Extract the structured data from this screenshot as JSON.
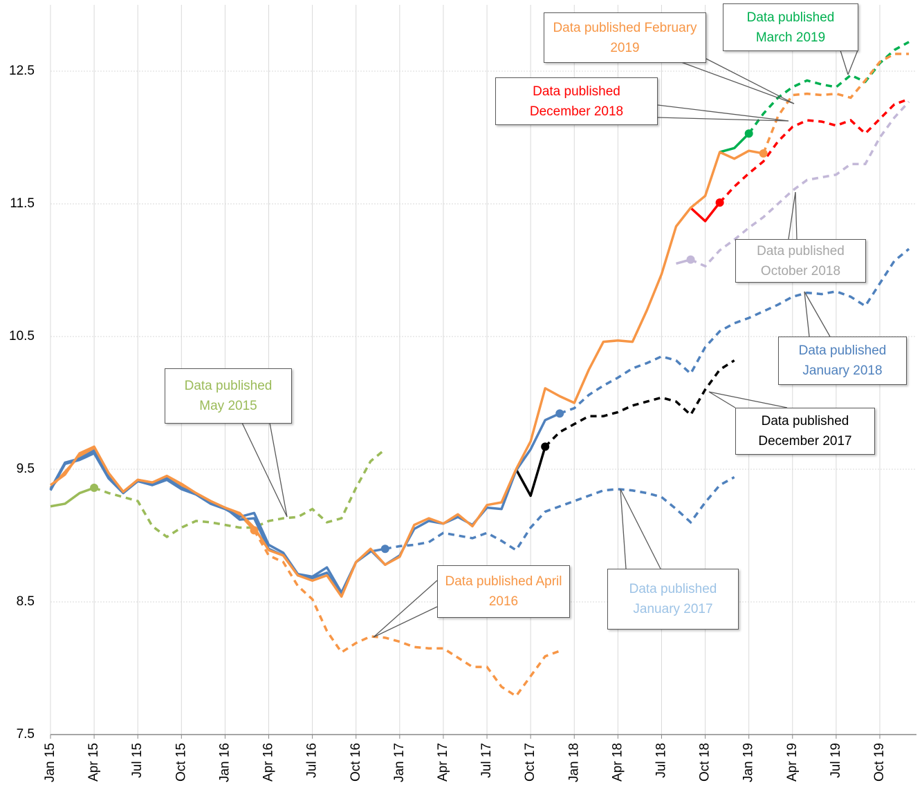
{
  "chart_data": {
    "type": "line",
    "categories": [
      "Jan 15",
      null,
      null,
      "Apr 15",
      null,
      null,
      "Jul 15",
      null,
      null,
      "Oct 15",
      null,
      null,
      "Jan 16",
      null,
      null,
      "Apr 16",
      null,
      null,
      "Jul 16",
      null,
      null,
      "Oct 16",
      null,
      null,
      "Jan 17",
      null,
      null,
      "Apr 17",
      null,
      null,
      "Jul 17",
      null,
      null,
      "Oct 17",
      null,
      null,
      "Jan 18",
      null,
      null,
      "Apr 18",
      null,
      null,
      "Jul 18",
      null,
      null,
      "Oct 18",
      null,
      null,
      "Jan 19",
      null,
      null,
      "Apr 19",
      null,
      null,
      "Jul 19",
      null,
      null,
      "Oct 19",
      null,
      null
    ],
    "ylim": [
      7.5,
      13.0
    ],
    "yticks": [
      7.5,
      8.5,
      9.5,
      10.5,
      11.5,
      12.5
    ],
    "grid": true,
    "series": [
      {
        "name": "Data published May 2015",
        "color": "#9bbb59",
        "values": [
          9.22,
          9.24,
          9.32,
          9.36,
          null,
          null,
          null,
          null,
          null,
          null,
          null,
          null,
          null,
          null,
          null,
          null,
          null,
          null,
          null,
          null,
          null,
          null,
          null,
          null,
          null,
          null,
          null,
          null,
          null,
          null,
          null,
          null,
          null,
          null,
          null,
          null,
          null,
          null,
          null,
          null,
          null,
          null,
          null,
          null,
          null,
          null,
          null,
          null,
          null,
          null,
          null,
          null,
          null,
          null,
          null,
          null,
          null,
          null,
          null,
          null
        ],
        "forecast": [
          null,
          null,
          null,
          null,
          9.32,
          9.29,
          9.26,
          9.07,
          8.99,
          9.06,
          9.11,
          9.1,
          9.08,
          9.06,
          9.06,
          9.11,
          9.13,
          9.14,
          9.2,
          9.1,
          9.13,
          9.36,
          9.56,
          9.65,
          null,
          null,
          null,
          null,
          null,
          null,
          null,
          null,
          null,
          null,
          null,
          null,
          null,
          null,
          null,
          null,
          null,
          null,
          null,
          null,
          null,
          null,
          null,
          null,
          null,
          null,
          null,
          null,
          null,
          null,
          null,
          null,
          null,
          null,
          null,
          null
        ]
      },
      {
        "name": "Data published April 2016",
        "color": "#f79646",
        "values": [
          9.36,
          9.48,
          9.6,
          9.66,
          9.47,
          9.33,
          9.42,
          9.4,
          9.44,
          9.38,
          9.32,
          9.26,
          9.21,
          9.16,
          9.04,
          null,
          null,
          null,
          null,
          null,
          null,
          null,
          null,
          null,
          null,
          null,
          null,
          null,
          null,
          null,
          null,
          null,
          null,
          null,
          null,
          null,
          null,
          null,
          null,
          null,
          null,
          null,
          null,
          null,
          null,
          null,
          null,
          null,
          null,
          null,
          null,
          null,
          null,
          null,
          null,
          null,
          null,
          null,
          null,
          null
        ],
        "forecast": [
          null,
          null,
          null,
          null,
          null,
          null,
          null,
          null,
          null,
          null,
          null,
          null,
          null,
          null,
          null,
          8.85,
          8.8,
          8.62,
          8.52,
          8.28,
          8.12,
          8.19,
          8.24,
          8.23,
          8.2,
          8.16,
          8.15,
          8.15,
          8.08,
          8.01,
          8.01,
          7.86,
          7.79,
          7.94,
          8.09,
          8.13,
          null,
          null,
          null,
          null,
          null,
          null,
          null,
          null,
          null,
          null,
          null,
          null,
          null,
          null,
          null,
          null,
          null,
          null,
          null,
          null,
          null,
          null,
          null,
          null
        ]
      },
      {
        "name": "Data published January 2017",
        "color": "#4f81bd",
        "values": [
          9.34,
          9.54,
          9.57,
          9.62,
          9.43,
          9.32,
          9.41,
          9.38,
          9.42,
          9.35,
          9.31,
          9.24,
          9.2,
          9.14,
          9.17,
          8.93,
          8.87,
          8.71,
          8.69,
          8.76,
          8.57,
          8.8,
          8.88,
          8.9,
          null,
          null,
          null,
          null,
          null,
          null,
          null,
          null,
          null,
          null,
          null,
          null,
          null,
          null,
          null,
          null,
          null,
          null,
          null,
          null,
          null,
          null,
          null,
          null,
          null,
          null,
          null,
          null,
          null,
          null,
          null,
          null,
          null,
          null,
          null,
          null
        ],
        "forecast": [
          null,
          null,
          null,
          null,
          null,
          null,
          null,
          null,
          null,
          null,
          null,
          null,
          null,
          null,
          null,
          null,
          null,
          null,
          null,
          null,
          null,
          null,
          null,
          null,
          8.92,
          8.93,
          8.95,
          9.02,
          9.0,
          8.98,
          9.02,
          8.96,
          8.89,
          9.06,
          9.18,
          9.22,
          9.26,
          9.3,
          9.34,
          9.35,
          9.34,
          9.32,
          9.29,
          9.2,
          9.1,
          9.25,
          9.38,
          9.44,
          null,
          null,
          null,
          null,
          null,
          null,
          null,
          null,
          null,
          null,
          null,
          null
        ]
      },
      {
        "name": "Data published December 2017",
        "color": "#000000",
        "values": [
          null,
          null,
          null,
          null,
          null,
          null,
          null,
          null,
          null,
          null,
          null,
          null,
          null,
          null,
          null,
          null,
          null,
          null,
          null,
          null,
          null,
          null,
          null,
          null,
          null,
          null,
          null,
          null,
          null,
          null,
          null,
          null,
          9.5,
          9.3,
          9.67,
          null,
          null,
          null,
          null,
          null,
          null,
          null,
          null,
          null,
          null,
          null,
          null,
          null,
          null,
          null,
          null,
          null,
          null,
          null,
          null,
          null,
          null,
          null,
          null,
          null
        ],
        "forecast": [
          null,
          null,
          null,
          null,
          null,
          null,
          null,
          null,
          null,
          null,
          null,
          null,
          null,
          null,
          null,
          null,
          null,
          null,
          null,
          null,
          null,
          null,
          null,
          null,
          null,
          null,
          null,
          null,
          null,
          null,
          null,
          null,
          null,
          null,
          null,
          9.78,
          9.84,
          9.9,
          9.9,
          9.93,
          9.98,
          10.01,
          10.04,
          10.01,
          9.91,
          10.1,
          10.25,
          10.32,
          null,
          null,
          null,
          null,
          null,
          null,
          null,
          null,
          null,
          null,
          null,
          null
        ]
      },
      {
        "name": "Data published January 2018",
        "color": "#4f81bd",
        "values": [
          9.35,
          9.55,
          9.58,
          9.64,
          9.44,
          9.33,
          9.41,
          9.39,
          9.43,
          9.36,
          9.31,
          9.25,
          9.21,
          9.12,
          9.13,
          8.9,
          8.85,
          8.7,
          8.68,
          8.72,
          8.55,
          8.8,
          8.89,
          8.78,
          8.85,
          9.05,
          9.11,
          9.09,
          9.14,
          9.08,
          9.21,
          9.2,
          9.49,
          9.65,
          9.87,
          9.92,
          null,
          null,
          null,
          null,
          null,
          null,
          null,
          null,
          null,
          null,
          null,
          null,
          null,
          null,
          null,
          null,
          null,
          null,
          null,
          null,
          null,
          null,
          null,
          null
        ],
        "forecast": [
          null,
          null,
          null,
          null,
          null,
          null,
          null,
          null,
          null,
          null,
          null,
          null,
          null,
          null,
          null,
          null,
          null,
          null,
          null,
          null,
          null,
          null,
          null,
          null,
          null,
          null,
          null,
          null,
          null,
          null,
          null,
          null,
          null,
          null,
          null,
          null,
          9.96,
          10.06,
          10.13,
          10.19,
          10.26,
          10.3,
          10.35,
          10.32,
          10.22,
          10.42,
          10.54,
          10.6,
          10.64,
          10.69,
          10.74,
          10.8,
          10.83,
          10.82,
          10.84,
          10.8,
          10.73,
          10.9,
          11.07,
          11.16
        ]
      },
      {
        "name": "Data published October 2018",
        "color": "#c3b8d8",
        "values": [
          null,
          null,
          null,
          null,
          null,
          null,
          null,
          null,
          null,
          null,
          null,
          null,
          null,
          null,
          null,
          null,
          null,
          null,
          null,
          null,
          null,
          null,
          null,
          null,
          null,
          null,
          null,
          null,
          null,
          null,
          null,
          null,
          null,
          null,
          null,
          null,
          null,
          null,
          null,
          null,
          null,
          null,
          null,
          11.05,
          11.08,
          null,
          null,
          null,
          null,
          null,
          null,
          null,
          null,
          null,
          null,
          null,
          null,
          null,
          null,
          null
        ],
        "forecast": [
          null,
          null,
          null,
          null,
          null,
          null,
          null,
          null,
          null,
          null,
          null,
          null,
          null,
          null,
          null,
          null,
          null,
          null,
          null,
          null,
          null,
          null,
          null,
          null,
          null,
          null,
          null,
          null,
          null,
          null,
          null,
          null,
          null,
          null,
          null,
          null,
          null,
          null,
          null,
          null,
          null,
          null,
          null,
          null,
          null,
          11.03,
          11.15,
          11.23,
          11.32,
          11.4,
          11.5,
          11.6,
          11.68,
          11.7,
          11.72,
          11.8,
          11.8,
          12.0,
          12.15,
          12.27
        ]
      },
      {
        "name": "Data published December 2018",
        "color": "#ff0000",
        "values": [
          null,
          null,
          null,
          null,
          null,
          null,
          null,
          null,
          null,
          null,
          null,
          null,
          null,
          null,
          null,
          null,
          null,
          null,
          null,
          null,
          null,
          null,
          null,
          null,
          null,
          null,
          null,
          null,
          null,
          null,
          null,
          null,
          null,
          null,
          null,
          null,
          null,
          null,
          null,
          null,
          null,
          null,
          null,
          null,
          11.47,
          11.37,
          11.51,
          null,
          null,
          null,
          null,
          null,
          null,
          null,
          null,
          null,
          null,
          null,
          null,
          null
        ],
        "forecast": [
          null,
          null,
          null,
          null,
          null,
          null,
          null,
          null,
          null,
          null,
          null,
          null,
          null,
          null,
          null,
          null,
          null,
          null,
          null,
          null,
          null,
          null,
          null,
          null,
          null,
          null,
          null,
          null,
          null,
          null,
          null,
          null,
          null,
          null,
          null,
          null,
          null,
          null,
          null,
          null,
          null,
          null,
          null,
          null,
          null,
          null,
          null,
          11.63,
          11.73,
          11.82,
          11.97,
          12.08,
          12.13,
          12.12,
          12.09,
          12.13,
          12.03,
          12.14,
          12.25,
          12.29
        ]
      },
      {
        "name": "Data published February 2019",
        "color": "#00b050",
        "values": [
          null,
          null,
          null,
          null,
          null,
          null,
          null,
          null,
          null,
          null,
          null,
          null,
          null,
          null,
          null,
          null,
          null,
          null,
          null,
          null,
          null,
          null,
          null,
          null,
          null,
          null,
          null,
          null,
          null,
          null,
          null,
          null,
          null,
          null,
          null,
          null,
          null,
          null,
          null,
          null,
          null,
          null,
          null,
          null,
          null,
          null,
          11.89,
          11.92,
          12.03,
          null,
          null,
          null,
          null,
          null,
          null,
          null,
          null,
          null,
          null,
          null
        ],
        "forecast": [
          null,
          null,
          null,
          null,
          null,
          null,
          null,
          null,
          null,
          null,
          null,
          null,
          null,
          null,
          null,
          null,
          null,
          null,
          null,
          null,
          null,
          null,
          null,
          null,
          null,
          null,
          null,
          null,
          null,
          null,
          null,
          null,
          null,
          null,
          null,
          null,
          null,
          null,
          null,
          null,
          null,
          null,
          null,
          null,
          null,
          null,
          null,
          null,
          null,
          12.18,
          12.3,
          12.38,
          12.43,
          12.4,
          12.38,
          12.47,
          12.42,
          12.56,
          12.66,
          12.72
        ]
      },
      {
        "name": "Data published March 2019",
        "color": "#f79646",
        "values": [
          9.38,
          9.46,
          9.62,
          9.67,
          9.47,
          9.33,
          9.42,
          9.4,
          9.45,
          9.39,
          9.32,
          9.26,
          9.21,
          9.17,
          9.06,
          8.89,
          8.85,
          8.7,
          8.66,
          8.7,
          8.54,
          8.8,
          8.9,
          8.78,
          8.84,
          9.08,
          9.13,
          9.09,
          9.16,
          9.07,
          9.23,
          9.25,
          9.5,
          9.71,
          10.11,
          10.05,
          10.0,
          10.25,
          10.46,
          10.47,
          10.46,
          10.7,
          10.97,
          11.33,
          11.47,
          11.56,
          11.89,
          11.84,
          11.9,
          11.88,
          null,
          null,
          null,
          null,
          null,
          null,
          null,
          null,
          null,
          null
        ],
        "forecast": [
          null,
          null,
          null,
          null,
          null,
          null,
          null,
          null,
          null,
          null,
          null,
          null,
          null,
          null,
          null,
          null,
          null,
          null,
          null,
          null,
          null,
          null,
          null,
          null,
          null,
          null,
          null,
          null,
          null,
          null,
          null,
          null,
          null,
          null,
          null,
          null,
          null,
          null,
          null,
          null,
          null,
          null,
          null,
          null,
          null,
          null,
          null,
          null,
          null,
          null,
          12.16,
          12.32,
          12.33,
          12.32,
          12.33,
          12.3,
          12.43,
          12.57,
          12.63,
          12.63
        ]
      }
    ]
  }
}
